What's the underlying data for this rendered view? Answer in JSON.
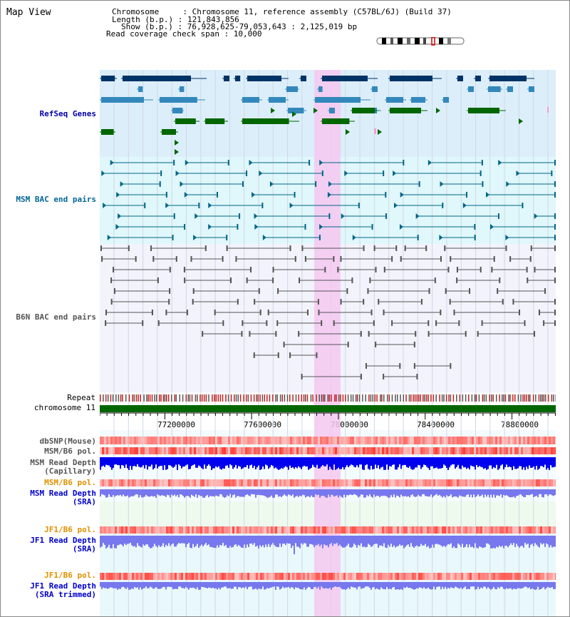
{
  "header": {
    "title": "Map View",
    "chromosome_line": "Chromosome     : Chromosome 11, reference assembly (C57BL/6J) (Build 37)",
    "length_line": "Length (b.p.) : 121,843,856",
    "show_line": "Show (b.p.) : 76,928,625-79,053,643 : 2,125,019 bp",
    "coverage_line": "Read coverage check span : 10,000"
  },
  "tracks": {
    "refseq": "RefSeq Genes",
    "msm_bac": "MSM BAC end pairs",
    "b6n_bac": "B6N BAC end pairs",
    "repeat": "Repeat",
    "chromosome": "chromosome 11",
    "dbsnp": "dbSNP(Mouse)",
    "msm_b6_pol": "MSM/B6 pol.",
    "msm_depth_cap": "MSM Read Depth\n(Capillary)",
    "msm_b6_pol_2": "MSM/B6 pol.",
    "msm_depth_sra": "MSM Read Depth\n(SRA)",
    "jf1_b6_pol": "JF1/B6 pol.",
    "jf1_depth_sra": "JF1 Read Depth\n(SRA)",
    "jf1_b6_pol_2": "JF1/B6 pol.",
    "jf1_depth_trim": "JF1 Read Depth\n(SRA trimmed)"
  },
  "axis": {
    "ticks": [
      "77200000",
      "77600000",
      "78000000",
      "78400000",
      "78800000"
    ]
  },
  "colors": {
    "refseq_bg": "#dceefa",
    "msm_bg": "#e0f7fb",
    "b6n_bg": "#f2f3fb",
    "highlight": "#f5c8f0",
    "chrom_bar": "#006600",
    "gene_dark": "#003366",
    "gene_mid": "#3388bb",
    "gene_green": "#006600",
    "msm_line": "#006688",
    "b6n_line": "#555555",
    "depth_cap": "#0000ee",
    "depth_sra": "#7777ee"
  }
}
